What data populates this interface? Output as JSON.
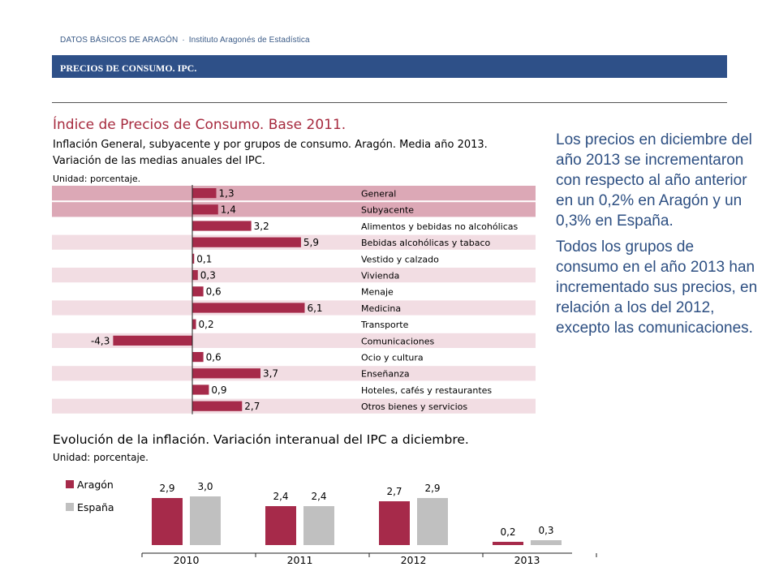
{
  "header": {
    "top_left": "DATOS BÁSICOS DE ARAGÓN",
    "top_right": "Instituto Aragonés de Estadística",
    "section_title": "PRECIOS DE CONSUMO. IPC."
  },
  "chart1": {
    "title": "Índice de Precios de Consumo. Base 2011.",
    "subtitle_line1": "Inflación General, subyacente y por grupos de consumo. Aragón. Media año 2013.",
    "subtitle_line2": "Variación de las medias anuales del IPC.",
    "unit": "Unidad: porcentaje."
  },
  "chart2": {
    "title": "Evolución de la inflación. Variación interanual del IPC a diciembre.",
    "unit": "Unidad: porcentaje."
  },
  "side_text": {
    "p1": "Los precios en diciembre del año 2013 se incrementaron con respecto al año anterior en un 0,2% en Aragón y un 0,3% en España.",
    "p2": "Todos los grupos de consumo en el año 2013 han incrementado sus precios, en relación a los del 2012, excepto las comunicaciones."
  },
  "colors": {
    "aragon": "#a62a4a",
    "espana": "#c0c0c0",
    "band": "#2e5088",
    "row_dark": "#dca8b6",
    "row_light": "#f2dde3"
  },
  "chart_data": [
    {
      "type": "bar",
      "orientation": "horizontal",
      "categories": [
        "General",
        "Subyacente",
        "Alimentos y bebidas no alcohólicas",
        "Bebidas alcohólicas y tabaco",
        "Vestido y calzado",
        "Vivienda",
        "Menaje",
        "Medicina",
        "Transporte",
        "Comunicaciones",
        "Ocio y cultura",
        "Enseñanza",
        "Hoteles, cafés y restaurantes",
        "Otros bienes y servicios"
      ],
      "values": [
        1.3,
        1.4,
        3.2,
        5.9,
        0.1,
        0.3,
        0.6,
        6.1,
        0.2,
        -4.3,
        0.6,
        3.7,
        0.9,
        2.7
      ],
      "value_labels": [
        "1,3",
        "1,4",
        "3,2",
        "5,9",
        "0,1",
        "0,3",
        "0,6",
        "6,1",
        "0,2",
        "-4,3",
        "0,6",
        "3,7",
        "0,9",
        "2,7"
      ]
    },
    {
      "type": "bar",
      "categories": [
        "2010",
        "2011",
        "2012",
        "2013"
      ],
      "series": [
        {
          "name": "Aragón",
          "values": [
            2.9,
            2.4,
            2.7,
            0.2
          ],
          "labels": [
            "2,9",
            "2,4",
            "2,7",
            "0,2"
          ]
        },
        {
          "name": "España",
          "values": [
            3.0,
            2.4,
            2.9,
            0.3
          ],
          "labels": [
            "3,0",
            "2,4",
            "2,9",
            "0,3"
          ]
        }
      ]
    }
  ]
}
